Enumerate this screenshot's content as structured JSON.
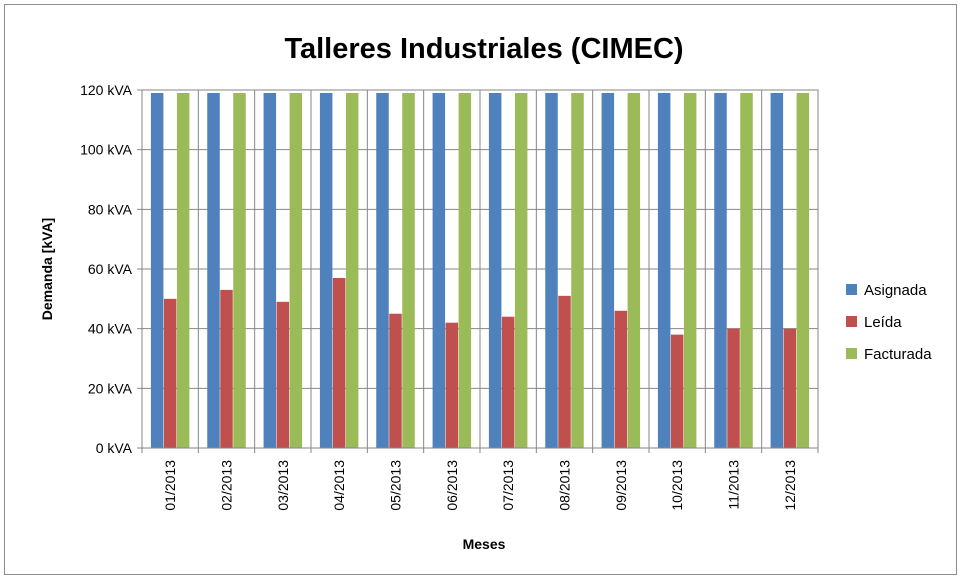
{
  "chart_data": {
    "type": "bar",
    "title": "Talleres Industriales (CIMEC)",
    "xlabel": "Meses",
    "ylabel": "Demanda [kVA]",
    "ylim": [
      0,
      120
    ],
    "yticks": [
      "0 kVA",
      "20 kVA",
      "40 kVA",
      "60 kVA",
      "80 kVA",
      "100 kVA",
      "120 kVA"
    ],
    "categories": [
      "01/2013",
      "02/2013",
      "03/2013",
      "04/2013",
      "05/2013",
      "06/2013",
      "07/2013",
      "08/2013",
      "09/2013",
      "10/2013",
      "11/2013",
      "12/2013"
    ],
    "series": [
      {
        "name": "Asignada",
        "color": "#4f81bd",
        "values": [
          119,
          119,
          119,
          119,
          119,
          119,
          119,
          119,
          119,
          119,
          119,
          119
        ]
      },
      {
        "name": "Leída",
        "color": "#c0504d",
        "values": [
          50,
          53,
          49,
          57,
          45,
          42,
          44,
          51,
          46,
          38,
          40,
          40
        ]
      },
      {
        "name": "Facturada",
        "color": "#9bbb59",
        "values": [
          119,
          119,
          119,
          119,
          119,
          119,
          119,
          119,
          119,
          119,
          119,
          119
        ]
      }
    ],
    "grid": true,
    "legend": "right"
  }
}
